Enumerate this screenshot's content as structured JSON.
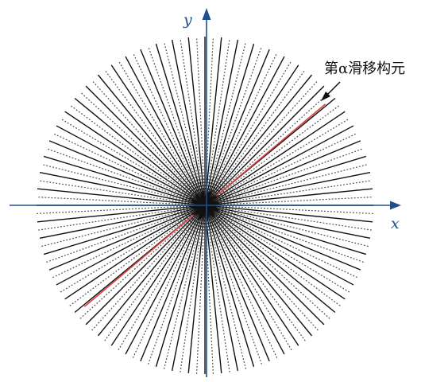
{
  "diagram": {
    "x_axis_label": "x",
    "y_axis_label": "y",
    "annotation": "第α滑移构元",
    "colors": {
      "background": "#ffffff",
      "axis": "#1f4f8f",
      "line": "#111111",
      "dotted_line": "#4a4a4a",
      "highlight": "#d94545"
    },
    "line_pattern": [
      "solid",
      "dotted"
    ]
  }
}
